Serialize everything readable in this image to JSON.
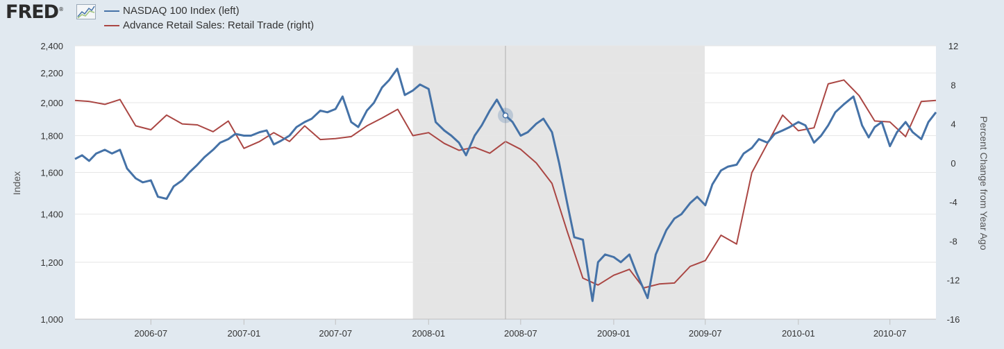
{
  "brand": {
    "logo_text": "FRED",
    "logo_mark": "®"
  },
  "chart_data": {
    "type": "line",
    "x_range": [
      "2006-02-01",
      "2010-09-30"
    ],
    "recession": {
      "start": "2007-12-01",
      "end": "2009-06-30",
      "color": "#e5e5e5"
    },
    "hover_date": "2008-06-01",
    "x_ticks": [
      "2006-07",
      "2007-01",
      "2007-07",
      "2008-01",
      "2008-07",
      "2009-01",
      "2009-07",
      "2010-01",
      "2010-07"
    ],
    "y_left": {
      "label": "Index",
      "scale": "log",
      "range": [
        1000,
        2400
      ],
      "ticks": [
        "1,000",
        "1,200",
        "1,400",
        "1,600",
        "1,800",
        "2,000",
        "2,200",
        "2,400"
      ],
      "tick_values": [
        1000,
        1200,
        1400,
        1600,
        1800,
        2000,
        2200,
        2400
      ]
    },
    "y_right": {
      "label": "Percent Change from Year Ago",
      "scale": "linear",
      "range": [
        -16,
        12
      ],
      "ticks": [
        "-16",
        "-12",
        "-8",
        "-4",
        "0",
        "4",
        "8",
        "12"
      ],
      "tick_values": [
        -16,
        -12,
        -8,
        -4,
        0,
        4,
        8,
        12
      ]
    },
    "series": [
      {
        "name": "NASDAQ 100 Index (left)",
        "axis": "left",
        "color": "#4572a7",
        "points": [
          [
            "2006-02-01",
            1670
          ],
          [
            "2006-02-15",
            1690
          ],
          [
            "2006-03-01",
            1660
          ],
          [
            "2006-03-15",
            1700
          ],
          [
            "2006-04-01",
            1720
          ],
          [
            "2006-04-15",
            1700
          ],
          [
            "2006-05-01",
            1720
          ],
          [
            "2006-05-15",
            1620
          ],
          [
            "2006-06-01",
            1570
          ],
          [
            "2006-06-15",
            1550
          ],
          [
            "2006-07-01",
            1560
          ],
          [
            "2006-07-15",
            1480
          ],
          [
            "2006-08-01",
            1470
          ],
          [
            "2006-08-15",
            1530
          ],
          [
            "2006-09-01",
            1560
          ],
          [
            "2006-09-15",
            1600
          ],
          [
            "2006-10-01",
            1640
          ],
          [
            "2006-10-15",
            1680
          ],
          [
            "2006-11-01",
            1720
          ],
          [
            "2006-11-15",
            1760
          ],
          [
            "2006-12-01",
            1780
          ],
          [
            "2006-12-15",
            1810
          ],
          [
            "2007-01-01",
            1800
          ],
          [
            "2007-01-15",
            1800
          ],
          [
            "2007-02-01",
            1820
          ],
          [
            "2007-02-15",
            1830
          ],
          [
            "2007-03-01",
            1750
          ],
          [
            "2007-03-15",
            1770
          ],
          [
            "2007-04-01",
            1800
          ],
          [
            "2007-04-15",
            1850
          ],
          [
            "2007-05-01",
            1880
          ],
          [
            "2007-05-15",
            1900
          ],
          [
            "2007-06-01",
            1950
          ],
          [
            "2007-06-15",
            1940
          ],
          [
            "2007-07-01",
            1960
          ],
          [
            "2007-07-15",
            2040
          ],
          [
            "2007-08-01",
            1880
          ],
          [
            "2007-08-15",
            1850
          ],
          [
            "2007-09-01",
            1950
          ],
          [
            "2007-09-15",
            2000
          ],
          [
            "2007-10-01",
            2100
          ],
          [
            "2007-10-15",
            2150
          ],
          [
            "2007-10-31",
            2230
          ],
          [
            "2007-11-15",
            2050
          ],
          [
            "2007-12-01",
            2080
          ],
          [
            "2007-12-15",
            2120
          ],
          [
            "2008-01-01",
            2090
          ],
          [
            "2008-01-15",
            1880
          ],
          [
            "2008-02-01",
            1830
          ],
          [
            "2008-02-15",
            1800
          ],
          [
            "2008-03-01",
            1760
          ],
          [
            "2008-03-15",
            1690
          ],
          [
            "2008-04-01",
            1800
          ],
          [
            "2008-04-15",
            1860
          ],
          [
            "2008-05-01",
            1950
          ],
          [
            "2008-05-15",
            2020
          ],
          [
            "2008-06-01",
            1920
          ],
          [
            "2008-06-15",
            1880
          ],
          [
            "2008-07-01",
            1800
          ],
          [
            "2008-07-15",
            1820
          ],
          [
            "2008-08-01",
            1870
          ],
          [
            "2008-08-15",
            1900
          ],
          [
            "2008-09-01",
            1820
          ],
          [
            "2008-09-15",
            1650
          ],
          [
            "2008-10-01",
            1450
          ],
          [
            "2008-10-15",
            1300
          ],
          [
            "2008-11-01",
            1290
          ],
          [
            "2008-11-20",
            1060
          ],
          [
            "2008-12-01",
            1200
          ],
          [
            "2008-12-15",
            1230
          ],
          [
            "2009-01-01",
            1220
          ],
          [
            "2009-01-15",
            1200
          ],
          [
            "2009-02-01",
            1230
          ],
          [
            "2009-02-15",
            1160
          ],
          [
            "2009-03-09",
            1070
          ],
          [
            "2009-03-25",
            1230
          ],
          [
            "2009-04-15",
            1330
          ],
          [
            "2009-05-01",
            1380
          ],
          [
            "2009-05-15",
            1400
          ],
          [
            "2009-06-01",
            1450
          ],
          [
            "2009-06-15",
            1480
          ],
          [
            "2009-07-01",
            1440
          ],
          [
            "2009-07-15",
            1540
          ],
          [
            "2009-08-01",
            1610
          ],
          [
            "2009-08-15",
            1630
          ],
          [
            "2009-09-01",
            1640
          ],
          [
            "2009-09-15",
            1700
          ],
          [
            "2009-10-01",
            1730
          ],
          [
            "2009-10-15",
            1780
          ],
          [
            "2009-11-01",
            1760
          ],
          [
            "2009-11-15",
            1810
          ],
          [
            "2009-12-01",
            1830
          ],
          [
            "2009-12-15",
            1850
          ],
          [
            "2010-01-01",
            1880
          ],
          [
            "2010-01-15",
            1860
          ],
          [
            "2010-02-01",
            1760
          ],
          [
            "2010-02-15",
            1800
          ],
          [
            "2010-03-01",
            1860
          ],
          [
            "2010-03-15",
            1940
          ],
          [
            "2010-04-01",
            1990
          ],
          [
            "2010-04-20",
            2040
          ],
          [
            "2010-05-07",
            1860
          ],
          [
            "2010-05-20",
            1790
          ],
          [
            "2010-06-01",
            1850
          ],
          [
            "2010-06-15",
            1880
          ],
          [
            "2010-07-01",
            1740
          ],
          [
            "2010-07-15",
            1820
          ],
          [
            "2010-08-01",
            1880
          ],
          [
            "2010-08-15",
            1820
          ],
          [
            "2010-09-01",
            1780
          ],
          [
            "2010-09-15",
            1880
          ],
          [
            "2010-09-30",
            1940
          ]
        ]
      },
      {
        "name": "Advance Retail Sales: Retail Trade (right)",
        "axis": "right",
        "color": "#aa4643",
        "points": [
          [
            "2006-02-01",
            6.4
          ],
          [
            "2006-03-01",
            6.3
          ],
          [
            "2006-04-01",
            6.0
          ],
          [
            "2006-05-01",
            6.5
          ],
          [
            "2006-06-01",
            3.8
          ],
          [
            "2006-07-01",
            3.4
          ],
          [
            "2006-08-01",
            4.9
          ],
          [
            "2006-09-01",
            4.0
          ],
          [
            "2006-10-01",
            3.9
          ],
          [
            "2006-11-01",
            3.2
          ],
          [
            "2006-12-01",
            4.3
          ],
          [
            "2007-01-01",
            1.5
          ],
          [
            "2007-02-01",
            2.2
          ],
          [
            "2007-03-01",
            3.1
          ],
          [
            "2007-04-01",
            2.2
          ],
          [
            "2007-05-01",
            3.8
          ],
          [
            "2007-06-01",
            2.4
          ],
          [
            "2007-07-01",
            2.5
          ],
          [
            "2007-08-01",
            2.7
          ],
          [
            "2007-09-01",
            3.8
          ],
          [
            "2007-10-01",
            4.6
          ],
          [
            "2007-11-01",
            5.5
          ],
          [
            "2007-12-01",
            2.8
          ],
          [
            "2008-01-01",
            3.1
          ],
          [
            "2008-02-01",
            2.0
          ],
          [
            "2008-03-01",
            1.3
          ],
          [
            "2008-04-01",
            1.6
          ],
          [
            "2008-05-01",
            1.0
          ],
          [
            "2008-06-01",
            2.2
          ],
          [
            "2008-07-01",
            1.4
          ],
          [
            "2008-08-01",
            0.0
          ],
          [
            "2008-09-01",
            -2.1
          ],
          [
            "2008-10-01",
            -7.0
          ],
          [
            "2008-11-01",
            -11.8
          ],
          [
            "2008-12-01",
            -12.5
          ],
          [
            "2009-01-01",
            -11.5
          ],
          [
            "2009-02-01",
            -10.9
          ],
          [
            "2009-03-01",
            -12.8
          ],
          [
            "2009-04-01",
            -12.4
          ],
          [
            "2009-05-01",
            -12.3
          ],
          [
            "2009-06-01",
            -10.6
          ],
          [
            "2009-07-01",
            -10.0
          ],
          [
            "2009-08-01",
            -7.4
          ],
          [
            "2009-09-01",
            -8.3
          ],
          [
            "2009-10-01",
            -1.0
          ],
          [
            "2009-11-01",
            2.0
          ],
          [
            "2009-12-01",
            4.9
          ],
          [
            "2010-01-01",
            3.3
          ],
          [
            "2010-02-01",
            3.6
          ],
          [
            "2010-03-01",
            8.1
          ],
          [
            "2010-04-01",
            8.5
          ],
          [
            "2010-05-01",
            6.9
          ],
          [
            "2010-06-01",
            4.3
          ],
          [
            "2010-07-01",
            4.2
          ],
          [
            "2010-08-01",
            2.7
          ],
          [
            "2010-09-01",
            6.3
          ],
          [
            "2010-09-30",
            6.4
          ]
        ]
      }
    ]
  }
}
